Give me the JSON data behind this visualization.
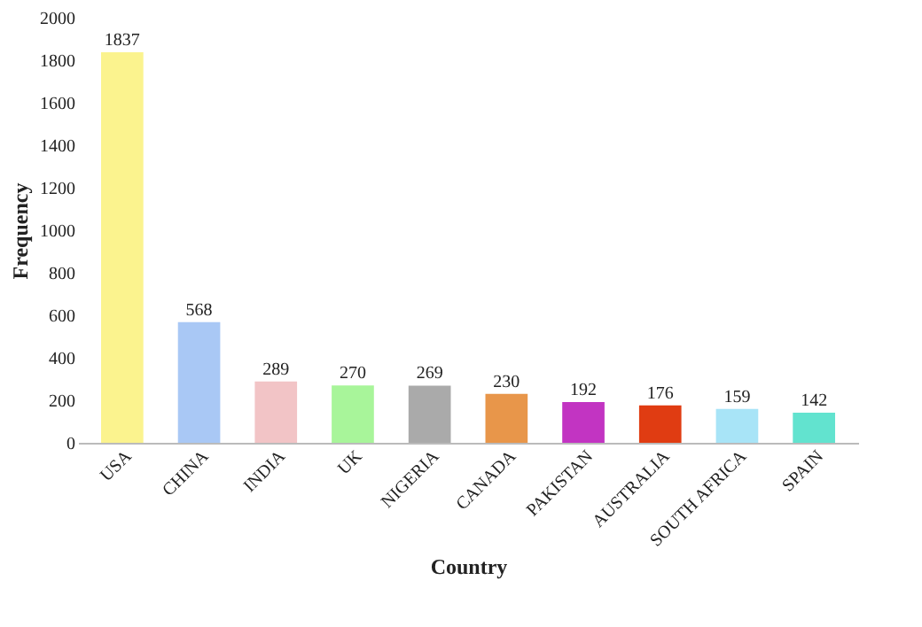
{
  "chart_data": {
    "type": "bar",
    "xlabel": "Country",
    "ylabel": "Frequency",
    "categories": [
      "USA",
      "CHINA",
      "INDIA",
      "UK",
      "NIGERIA",
      "CANADA",
      "PAKISTAN",
      "AUSTRALIA",
      "SOUTH AFRICA",
      "SPAIN"
    ],
    "values": [
      1837,
      568,
      289,
      270,
      269,
      230,
      192,
      176,
      159,
      142
    ],
    "colors": [
      "#fbf38e",
      "#a9c8f5",
      "#f2c4c6",
      "#a8f59a",
      "#aaaaaa",
      "#e8964a",
      "#c234c2",
      "#e03c12",
      "#a8e4f7",
      "#62e3cf"
    ],
    "ylim": [
      0,
      2000
    ],
    "yticks": [
      0,
      200,
      400,
      600,
      800,
      1000,
      1200,
      1400,
      1600,
      1800,
      2000
    ],
    "grid": false,
    "data_labels": true
  }
}
